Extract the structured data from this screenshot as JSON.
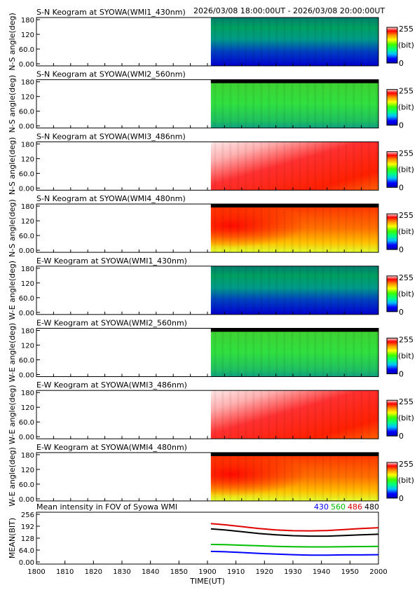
{
  "header": {
    "time_range": "2026/03/08 18:00:00UT - 2026/03/08 20:00:00UT"
  },
  "colors": {
    "blue": "#0000ff",
    "green": "#00c000",
    "red": "#e00000",
    "black": "#000000"
  },
  "chart_data": [
    {
      "type": "heatmap",
      "title": "S-N Keogram at SYOWA(WMI1_430nm)",
      "ylabel": "N-S angle(deg)",
      "yticks": [
        "180",
        "120",
        "60.0",
        "0.00"
      ],
      "colorbar": {
        "max": "255",
        "unit": "(bit)",
        "min": "0",
        "palette": "blue"
      },
      "data_start": 1902,
      "xlim": [
        1800,
        2000
      ]
    },
    {
      "type": "heatmap",
      "title": "S-N Keogram at SYOWA(WMI2_560nm)",
      "ylabel": "N-S angle(deg)",
      "yticks": [
        "180",
        "120",
        "60.0",
        "0.00"
      ],
      "colorbar": {
        "max": "255",
        "unit": "(bit)",
        "min": "0",
        "palette": "green"
      },
      "data_start": 1902,
      "xlim": [
        1800,
        2000
      ]
    },
    {
      "type": "heatmap",
      "title": "S-N Keogram at SYOWA(WMI3_486nm)",
      "ylabel": "N-S angle(deg)",
      "yticks": [
        "180",
        "120",
        "60.0",
        "0.00"
      ],
      "colorbar": {
        "max": "255",
        "unit": "(bit)",
        "min": "0",
        "palette": "red"
      },
      "data_start": 1902,
      "xlim": [
        1800,
        2000
      ]
    },
    {
      "type": "heatmap",
      "title": "S-N Keogram at SYOWA(WMI4_480nm)",
      "ylabel": "N-S angle(deg)",
      "yticks": [
        "180",
        "120",
        "60.0",
        "0.00"
      ],
      "colorbar": {
        "max": "255",
        "unit": "(bit)",
        "min": "0",
        "palette": "yellowred"
      },
      "data_start": 1902,
      "xlim": [
        1800,
        2000
      ]
    },
    {
      "type": "heatmap",
      "title": "E-W Keogram at SYOWA(WMI1_430nm)",
      "ylabel": "W-E angle(deg)",
      "yticks": [
        "180",
        "120",
        "60.0",
        "0.00"
      ],
      "colorbar": {
        "max": "255",
        "unit": "(bit)",
        "min": "0",
        "palette": "blue"
      },
      "data_start": 1902,
      "xlim": [
        1800,
        2000
      ]
    },
    {
      "type": "heatmap",
      "title": "E-W Keogram at SYOWA(WMI2_560nm)",
      "ylabel": "W-E angle(deg)",
      "yticks": [
        "180",
        "120",
        "60.0",
        "0.00"
      ],
      "colorbar": {
        "max": "255",
        "unit": "(bit)",
        "min": "0",
        "palette": "green"
      },
      "data_start": 1902,
      "xlim": [
        1800,
        2000
      ]
    },
    {
      "type": "heatmap",
      "title": "E-W Keogram at SYOWA(WMI3_486nm)",
      "ylabel": "W-E angle(deg)",
      "yticks": [
        "180",
        "120",
        "60.0",
        "0.00"
      ],
      "colorbar": {
        "max": "255",
        "unit": "(bit)",
        "min": "0",
        "palette": "red"
      },
      "data_start": 1902,
      "xlim": [
        1800,
        2000
      ]
    },
    {
      "type": "heatmap",
      "title": "E-W Keogram at SYOWA(WMI4_480nm)",
      "ylabel": "W-E angle(deg)",
      "yticks": [
        "180",
        "120",
        "60.0",
        "0.00"
      ],
      "colorbar": {
        "max": "255",
        "unit": "(bit)",
        "min": "0",
        "palette": "yellowred"
      },
      "data_start": 1902,
      "xlim": [
        1800,
        2000
      ]
    },
    {
      "type": "line",
      "title": "Mean intensity in FOV of Syowa WMI",
      "ylabel": "MEAN(BIT)",
      "xlabel": "TIME(UT)",
      "xlim": [
        1800,
        2000
      ],
      "ylim": [
        0,
        256
      ],
      "yticks": [
        "256",
        "192",
        "128",
        "64.0",
        "0.00"
      ],
      "xticks": [
        "1800",
        "1810",
        "1820",
        "1830",
        "1840",
        "1850",
        "1900",
        "1910",
        "1920",
        "1930",
        "1940",
        "1950",
        "2000"
      ],
      "legend": [
        "430",
        "560",
        "486",
        "480"
      ],
      "series": [
        {
          "name": "486",
          "color": "red",
          "x": [
            1902,
            1910,
            1920,
            1930,
            1940,
            1950,
            1960,
            1970,
            1980,
            1990,
            2000
          ],
          "values": [
            206,
            200,
            190,
            180,
            172,
            168,
            167,
            169,
            174,
            180,
            184
          ]
        },
        {
          "name": "480",
          "color": "black",
          "x": [
            1902,
            1910,
            1920,
            1930,
            1940,
            1950,
            1960,
            1970,
            1980,
            1990,
            2000
          ],
          "values": [
            178,
            172,
            163,
            153,
            146,
            141,
            139,
            139,
            142,
            146,
            149
          ]
        },
        {
          "name": "560",
          "color": "green",
          "x": [
            1902,
            1910,
            1920,
            1930,
            1940,
            1950,
            1960,
            1970,
            1980,
            1990,
            2000
          ],
          "values": [
            94,
            93,
            90,
            87,
            84,
            82,
            81,
            81,
            82,
            83,
            84
          ]
        },
        {
          "name": "430",
          "color": "blue",
          "x": [
            1902,
            1910,
            1920,
            1930,
            1940,
            1950,
            1960,
            1970,
            1980,
            1990,
            2000
          ],
          "values": [
            57,
            55,
            51,
            46,
            42,
            39,
            37,
            37,
            38,
            38,
            39
          ]
        }
      ]
    }
  ]
}
